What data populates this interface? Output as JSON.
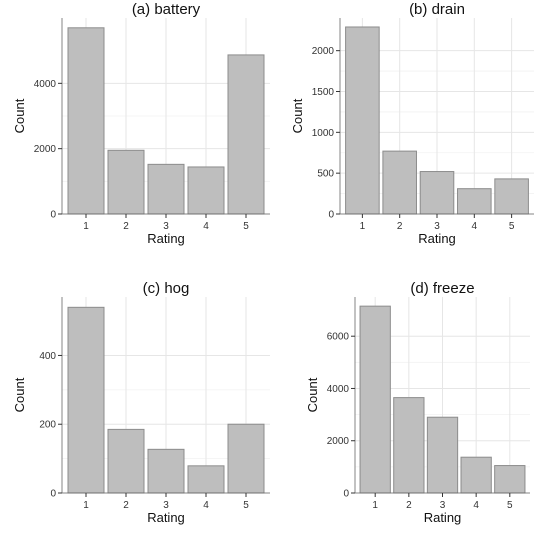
{
  "chart_data": [
    {
      "type": "bar",
      "title": "(a) battery",
      "xlabel": "Rating",
      "ylabel": "Count",
      "categories": [
        "1",
        "2",
        "3",
        "4",
        "5"
      ],
      "values": [
        5700,
        1950,
        1520,
        1440,
        4870
      ],
      "ylim": [
        0,
        6000
      ],
      "yticks": [
        "0",
        "2000",
        "4000"
      ],
      "ytick_values": [
        0,
        2000,
        4000
      ],
      "grid": true,
      "bar_color": "#bebebe",
      "bar_edge": "#8c8c8c"
    },
    {
      "type": "bar",
      "title": "(b) drain",
      "xlabel": "Rating",
      "ylabel": "Count",
      "categories": [
        "1",
        "2",
        "3",
        "4",
        "5"
      ],
      "values": [
        2290,
        770,
        520,
        310,
        430
      ],
      "ylim": [
        0,
        2400
      ],
      "yticks": [
        "0",
        "500",
        "1000",
        "1500",
        "2000"
      ],
      "ytick_values": [
        0,
        500,
        1000,
        1500,
        2000
      ],
      "grid": true,
      "bar_color": "#bebebe",
      "bar_edge": "#8c8c8c"
    },
    {
      "type": "bar",
      "title": "(c) hog",
      "xlabel": "Rating",
      "ylabel": "Count",
      "categories": [
        "1",
        "2",
        "3",
        "4",
        "5"
      ],
      "values": [
        540,
        185,
        127,
        79,
        200
      ],
      "ylim": [
        0,
        570
      ],
      "yticks": [
        "0",
        "200",
        "400"
      ],
      "ytick_values": [
        0,
        200,
        400
      ],
      "grid": true,
      "bar_color": "#bebebe",
      "bar_edge": "#8c8c8c"
    },
    {
      "type": "bar",
      "title": "(d) freeze",
      "xlabel": "Rating",
      "ylabel": "Count",
      "categories": [
        "1",
        "2",
        "3",
        "4",
        "5"
      ],
      "values": [
        7150,
        3650,
        2900,
        1370,
        1050
      ],
      "ylim": [
        0,
        7500
      ],
      "yticks": [
        "0",
        "2000",
        "4000",
        "6000"
      ],
      "ytick_values": [
        0,
        2000,
        4000,
        6000
      ],
      "grid": true,
      "bar_color": "#bebebe",
      "bar_edge": "#8c8c8c"
    }
  ]
}
